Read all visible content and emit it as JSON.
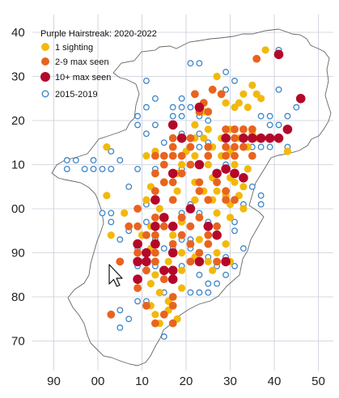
{
  "legend": {
    "title": "Purple Hairstreak:  2020-2022",
    "items": [
      {
        "key": "one",
        "label": "1 sighting"
      },
      {
        "key": "few",
        "label": "2-9 max seen"
      },
      {
        "key": "many",
        "label": "10+ max seen"
      },
      {
        "key": "old",
        "label": "2015-2019"
      }
    ]
  },
  "colors": {
    "one": "#f2b90c",
    "few": "#e8641e",
    "many": "#b4082a",
    "old": "#3d86c6",
    "grid": "#c8ccd8",
    "outline": "#666666"
  },
  "axes": {
    "x_ticks": [
      "90",
      "00",
      "10",
      "20",
      "30",
      "40",
      "50"
    ],
    "y_ticks": [
      "40",
      "30",
      "20",
      "10",
      "00",
      "90",
      "80",
      "70"
    ]
  },
  "records": {
    "one": [
      [
        38,
        36
      ],
      [
        27,
        30
      ],
      [
        35,
        28
      ],
      [
        33,
        26
      ],
      [
        36,
        26
      ],
      [
        37,
        25
      ],
      [
        32,
        24
      ],
      [
        29,
        24
      ],
      [
        31,
        23
      ],
      [
        34,
        23
      ],
      [
        24,
        22
      ],
      [
        22,
        19
      ],
      [
        25,
        18
      ],
      [
        35,
        17
      ],
      [
        30,
        18
      ],
      [
        28,
        16
      ],
      [
        32,
        16
      ],
      [
        36,
        16
      ],
      [
        24,
        16
      ],
      [
        22,
        16
      ],
      [
        26,
        14
      ],
      [
        34,
        14
      ],
      [
        17,
        14
      ],
      [
        20,
        13
      ],
      [
        13,
        13
      ],
      [
        30,
        13
      ],
      [
        43,
        13
      ],
      [
        2,
        14
      ],
      [
        22,
        12
      ],
      [
        28,
        12
      ],
      [
        11,
        12
      ],
      [
        19,
        10
      ],
      [
        25,
        10
      ],
      [
        31,
        10
      ],
      [
        34,
        9
      ],
      [
        18,
        8
      ],
      [
        26,
        7
      ],
      [
        30,
        7
      ],
      [
        22,
        6
      ],
      [
        31,
        6
      ],
      [
        12,
        5
      ],
      [
        33,
        5
      ],
      [
        27,
        4
      ],
      [
        18,
        4
      ],
      [
        24,
        4
      ],
      [
        29,
        3
      ],
      [
        32,
        3
      ],
      [
        2,
        3
      ],
      [
        11,
        2
      ],
      [
        22,
        2
      ],
      [
        26,
        2
      ],
      [
        30,
        1
      ],
      [
        14,
        0
      ],
      [
        33,
        0
      ],
      [
        6,
        -1
      ],
      [
        27,
        -1
      ],
      [
        23,
        -2
      ],
      [
        30,
        -2
      ],
      [
        19,
        -3
      ],
      [
        12,
        -4
      ],
      [
        25,
        -4
      ],
      [
        3,
        -6
      ],
      [
        10,
        -6
      ],
      [
        17,
        -6
      ],
      [
        23,
        -7
      ],
      [
        29,
        -8
      ],
      [
        12,
        -9
      ],
      [
        19,
        -10
      ],
      [
        27,
        -10
      ],
      [
        22,
        -11
      ],
      [
        16,
        -12
      ],
      [
        25,
        -12
      ],
      [
        30,
        -12
      ],
      [
        19,
        -14
      ],
      [
        26,
        -14
      ],
      [
        13,
        -15
      ],
      [
        12,
        -17
      ],
      [
        19,
        -18
      ],
      [
        14,
        -19
      ],
      [
        16,
        -21
      ],
      [
        12,
        -22
      ],
      [
        16,
        -23
      ],
      [
        13,
        -24
      ],
      [
        18,
        -25
      ],
      [
        14,
        -26
      ]
    ],
    "few": [
      [
        36,
        34
      ],
      [
        26,
        27
      ],
      [
        22,
        26
      ],
      [
        28,
        26
      ],
      [
        24,
        24
      ],
      [
        23,
        22
      ],
      [
        25,
        22
      ],
      [
        17,
        19
      ],
      [
        29,
        18
      ],
      [
        31,
        18
      ],
      [
        33,
        18
      ],
      [
        35,
        18
      ],
      [
        29,
        16
      ],
      [
        31,
        16
      ],
      [
        21,
        16
      ],
      [
        17,
        16
      ],
      [
        29,
        14
      ],
      [
        31,
        14
      ],
      [
        33,
        14
      ],
      [
        25,
        14
      ],
      [
        21,
        14
      ],
      [
        17,
        14
      ],
      [
        29,
        12
      ],
      [
        31,
        12
      ],
      [
        35,
        12
      ],
      [
        17,
        12
      ],
      [
        15,
        12
      ],
      [
        19,
        12
      ],
      [
        13,
        12
      ],
      [
        25,
        12
      ],
      [
        21,
        10
      ],
      [
        15,
        10
      ],
      [
        19,
        8
      ],
      [
        13,
        8
      ],
      [
        17,
        6
      ],
      [
        15,
        6
      ],
      [
        23,
        6
      ],
      [
        27,
        6
      ],
      [
        29,
        4
      ],
      [
        13,
        4
      ],
      [
        23,
        4
      ],
      [
        17,
        2
      ],
      [
        25,
        2
      ],
      [
        29,
        2
      ],
      [
        31,
        2
      ],
      [
        9,
        0
      ],
      [
        13,
        -2
      ],
      [
        19,
        -2
      ],
      [
        23,
        -2
      ],
      [
        9,
        -4
      ],
      [
        15,
        -4
      ],
      [
        21,
        -4
      ],
      [
        7,
        -4
      ],
      [
        27,
        -4
      ],
      [
        25,
        -6
      ],
      [
        11,
        -6
      ],
      [
        13,
        -6
      ],
      [
        19,
        -6
      ],
      [
        17,
        -8
      ],
      [
        21,
        -8
      ],
      [
        25,
        -8
      ],
      [
        9,
        -10
      ],
      [
        13,
        -10
      ],
      [
        23,
        -10
      ],
      [
        5,
        -12
      ],
      [
        13,
        -12
      ],
      [
        21,
        -12
      ],
      [
        27,
        -12
      ],
      [
        11,
        -14
      ],
      [
        17,
        -14
      ],
      [
        15,
        -16
      ],
      [
        9,
        -18
      ],
      [
        17,
        -20
      ],
      [
        11,
        -22
      ],
      [
        17,
        -22
      ],
      [
        3,
        -24
      ],
      [
        15,
        -24
      ],
      [
        13,
        -26
      ],
      [
        17,
        -26
      ]
    ],
    "many": [
      [
        41,
        35
      ],
      [
        23,
        23
      ],
      [
        46,
        25
      ],
      [
        17,
        19
      ],
      [
        37,
        16
      ],
      [
        39,
        16
      ],
      [
        41,
        16
      ],
      [
        43,
        18
      ],
      [
        35,
        16
      ],
      [
        33,
        16
      ],
      [
        29,
        16
      ],
      [
        19,
        16
      ],
      [
        23,
        10
      ],
      [
        33,
        7
      ],
      [
        29,
        9
      ],
      [
        27,
        8
      ],
      [
        31,
        8
      ],
      [
        17,
        8
      ],
      [
        13,
        2
      ],
      [
        21,
        0
      ],
      [
        15,
        -2
      ],
      [
        13,
        -4
      ],
      [
        17,
        -4
      ],
      [
        27,
        -6
      ],
      [
        25,
        -4
      ],
      [
        9,
        -8
      ],
      [
        11,
        -10
      ],
      [
        13,
        -8
      ],
      [
        9,
        -12
      ],
      [
        11,
        -12
      ],
      [
        17,
        -10
      ],
      [
        15,
        -14
      ],
      [
        17,
        -14
      ],
      [
        23,
        -12
      ],
      [
        29,
        -12
      ],
      [
        17,
        -16
      ],
      [
        9,
        -16
      ]
    ],
    "old": [
      [
        41,
        36
      ],
      [
        23,
        33
      ],
      [
        21,
        33
      ],
      [
        29,
        31
      ],
      [
        31,
        29
      ],
      [
        29,
        27
      ],
      [
        11,
        29
      ],
      [
        41,
        27
      ],
      [
        19,
        25
      ],
      [
        19,
        23
      ],
      [
        21,
        23
      ],
      [
        17,
        23
      ],
      [
        19,
        21
      ],
      [
        17,
        21
      ],
      [
        13,
        25
      ],
      [
        11,
        23
      ],
      [
        9,
        21
      ],
      [
        23,
        21
      ],
      [
        25,
        20
      ],
      [
        37,
        21
      ],
      [
        39,
        21
      ],
      [
        39,
        19
      ],
      [
        41,
        19
      ],
      [
        43,
        21
      ],
      [
        45,
        23
      ],
      [
        13,
        19
      ],
      [
        9,
        19
      ],
      [
        23,
        17
      ],
      [
        19,
        17
      ],
      [
        11,
        17
      ],
      [
        15,
        15
      ],
      [
        25,
        15
      ],
      [
        37,
        14
      ],
      [
        39,
        14
      ],
      [
        43,
        14
      ],
      [
        35,
        14
      ],
      [
        23,
        14
      ],
      [
        3,
        13
      ],
      [
        -7,
        11
      ],
      [
        -7,
        9
      ],
      [
        -5,
        11
      ],
      [
        -3,
        9
      ],
      [
        -1,
        11
      ],
      [
        -1,
        9
      ],
      [
        5,
        11
      ],
      [
        1,
        9
      ],
      [
        9,
        9
      ],
      [
        13,
        9
      ],
      [
        3,
        9
      ],
      [
        19,
        9
      ],
      [
        29,
        10
      ],
      [
        7,
        5
      ],
      [
        35,
        5
      ],
      [
        37,
        3
      ],
      [
        33,
        1
      ],
      [
        37,
        1
      ],
      [
        11,
        1
      ],
      [
        21,
        1
      ],
      [
        19,
        -1
      ],
      [
        1,
        -1
      ],
      [
        3,
        -1
      ],
      [
        25,
        -3
      ],
      [
        3,
        -3
      ],
      [
        11,
        -3
      ],
      [
        23,
        -1
      ],
      [
        31,
        -3
      ],
      [
        7,
        -5
      ],
      [
        31,
        -5
      ],
      [
        13,
        -7
      ],
      [
        19,
        -7
      ],
      [
        21,
        -7
      ],
      [
        5,
        -7
      ],
      [
        15,
        -9
      ],
      [
        21,
        -9
      ],
      [
        17,
        -9
      ],
      [
        33,
        -9
      ],
      [
        9,
        -9
      ],
      [
        29,
        -11
      ],
      [
        25,
        -11
      ],
      [
        31,
        -13
      ],
      [
        19,
        -13
      ],
      [
        13,
        -13
      ],
      [
        27,
        -13
      ],
      [
        9,
        -13
      ],
      [
        23,
        -15
      ],
      [
        29,
        -15
      ],
      [
        25,
        -17
      ],
      [
        27,
        -17
      ],
      [
        23,
        -19
      ],
      [
        21,
        -19
      ],
      [
        25,
        -19
      ],
      [
        15,
        -19
      ],
      [
        5,
        -23
      ],
      [
        7,
        -25
      ],
      [
        9,
        -21
      ],
      [
        11,
        -21
      ],
      [
        5,
        -27
      ],
      [
        15,
        -29
      ]
    ]
  },
  "pointer": {
    "icon": "cursor-arrow-icon"
  }
}
